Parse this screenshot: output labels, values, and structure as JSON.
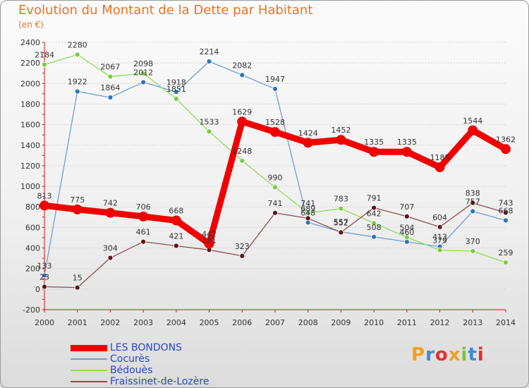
{
  "chart_data": {
    "type": "line",
    "title": "Evolution du Montant de la Dette par Habitant",
    "subtitle": "(en €)",
    "x": [
      "2000",
      "2001",
      "2002",
      "2003",
      "2004",
      "2005",
      "2006",
      "2007",
      "2008",
      "2009",
      "2010",
      "2011",
      "2012",
      "2013",
      "2014"
    ],
    "ylim": [
      -200,
      2400
    ],
    "yticks": [
      -200,
      0,
      200,
      400,
      600,
      800,
      1000,
      1200,
      1400,
      1600,
      1800,
      2000,
      2200,
      2400
    ],
    "legend_position": "bottom-left",
    "series": [
      {
        "name": "Cocurès",
        "color": "#6ea0d0",
        "marker": "#2f74b8",
        "values": [
          133,
          1922,
          1864,
          2012,
          1918,
          2214,
          2082,
          1947,
          648,
          557,
          508,
          460,
          413,
          757,
          668
        ]
      },
      {
        "name": "Bédouès",
        "color": "#8edc5a",
        "marker": "#7ccc3c",
        "values": [
          2184,
          2280,
          2067,
          2098,
          1851,
          1533,
          1248,
          990,
          741,
          783,
          642,
          504,
          379,
          370,
          259
        ]
      },
      {
        "name": "Fraissinet-de-Lozère",
        "color": "#8a5050",
        "marker": "#5a1414",
        "values": [
          23,
          15,
          304,
          461,
          421,
          381,
          323,
          741,
          689,
          552,
          791,
          707,
          604,
          838,
          743
        ]
      },
      {
        "name": "LES BONDONS",
        "color": "#f00000",
        "marker": "#f00000",
        "values": [
          813,
          775,
          742,
          706,
          668,
          442,
          1629,
          1528,
          1424,
          1452,
          1335,
          1335,
          1185,
          1544,
          1362
        ]
      }
    ]
  },
  "logo": {
    "text": "Proxiti",
    "letter_colors": [
      "#f0a020",
      "#3a8ad8",
      "#e23030",
      "#f0a020",
      "#7cc33c",
      "#3a8ad8",
      "#e23030"
    ]
  }
}
